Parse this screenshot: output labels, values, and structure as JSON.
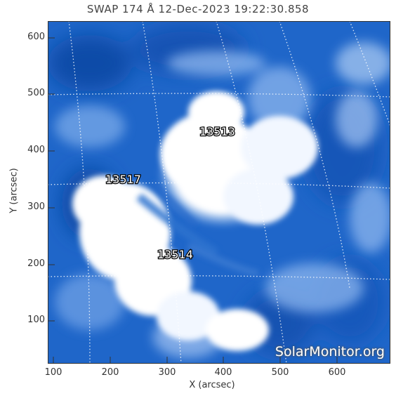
{
  "title": "SWAP 174 Å 12-Dec-2023 19:22:30.858",
  "x_axis": {
    "label": "X (arcsec)",
    "ticks": [
      "100",
      "200",
      "300",
      "400",
      "500",
      "600"
    ],
    "range": [
      90,
      695
    ]
  },
  "y_axis": {
    "label": "Y (arcsec)",
    "ticks": [
      "100",
      "200",
      "300",
      "400",
      "500",
      "600"
    ],
    "range": [
      25,
      630
    ]
  },
  "regions": [
    {
      "id": "13513",
      "x": 380,
      "y": 432
    },
    {
      "id": "13517",
      "x": 225,
      "y": 350
    },
    {
      "id": "13514",
      "x": 315,
      "y": 217
    }
  ],
  "watermark": "SolarMonitor.org",
  "colors": {
    "background_blue": "#1e63c8",
    "bright": "#ffffff"
  }
}
